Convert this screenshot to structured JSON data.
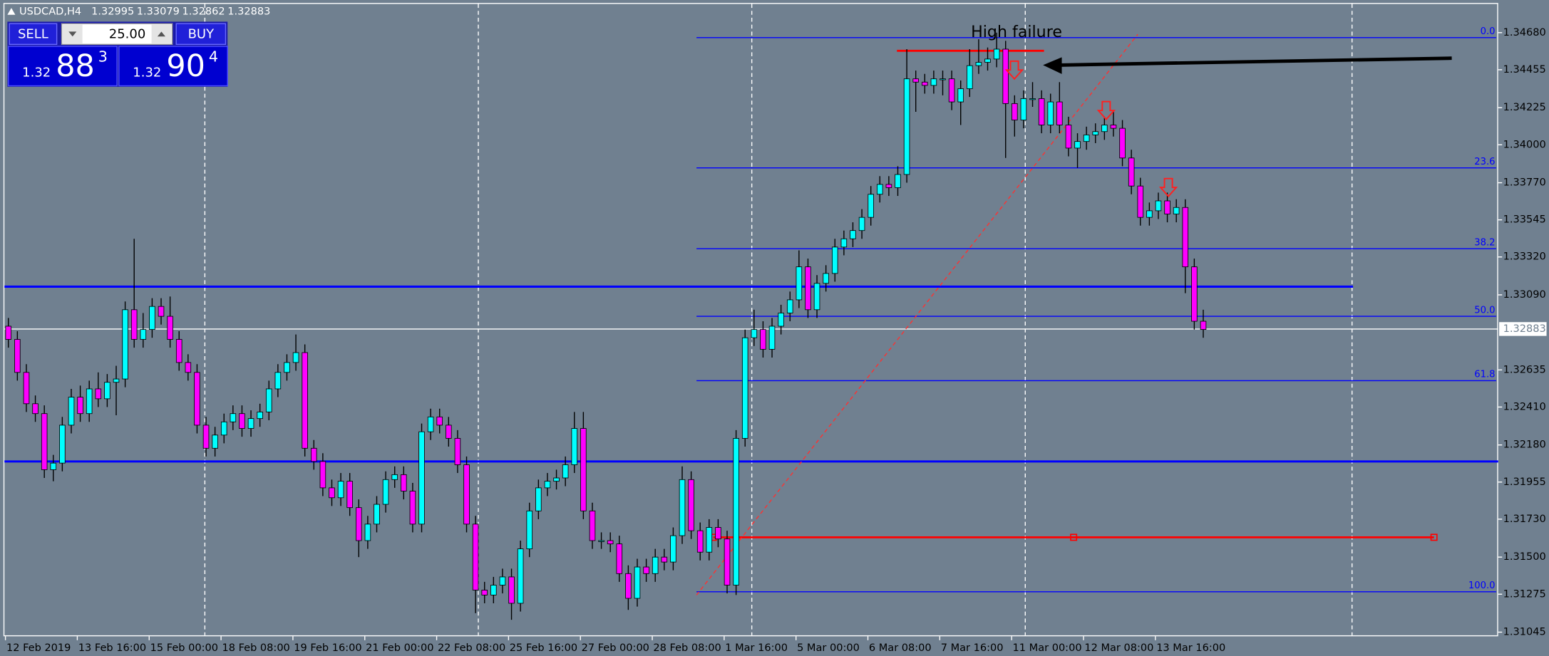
{
  "header": {
    "symbol": "USDCAD,H4",
    "ohlc": [
      "1.32995",
      "1.33079",
      "1.32862",
      "1.32883"
    ]
  },
  "trade_panel": {
    "sell": "SELL",
    "lot": "25.00",
    "buy": "BUY",
    "bid": [
      "1.32",
      "88",
      "3"
    ],
    "ask": [
      "1.32",
      "90",
      "4"
    ]
  },
  "chart_data": {
    "type": "candlestick",
    "annotation": "High failure",
    "bull_color": "#00ffff",
    "bear_color": "#ff00ff",
    "wick_color": "#000000",
    "categories": [
      "12 Feb 2019",
      null,
      null,
      null,
      null,
      null,
      null,
      null,
      "13 Feb 16:00",
      null,
      null,
      null,
      null,
      null,
      null,
      null,
      "15 Feb 00:00",
      null,
      null,
      null,
      null,
      null,
      null,
      null,
      "18 Feb 08:00",
      null,
      null,
      null,
      null,
      null,
      null,
      null,
      "19 Feb 16:00",
      null,
      null,
      null,
      null,
      null,
      null,
      null,
      "21 Feb 00:00",
      null,
      null,
      null,
      null,
      null,
      null,
      null,
      "22 Feb 08:00",
      null,
      null,
      null,
      null,
      null,
      null,
      null,
      "25 Feb 16:00",
      null,
      null,
      null,
      null,
      null,
      null,
      null,
      "27 Feb 00:00",
      null,
      null,
      null,
      null,
      null,
      null,
      null,
      "28 Feb 08:00",
      null,
      null,
      null,
      null,
      null,
      null,
      null,
      "1 Mar 16:00",
      null,
      null,
      null,
      null,
      null,
      null,
      null,
      "5 Mar 00:00",
      null,
      null,
      null,
      null,
      null,
      null,
      null,
      "6 Mar 08:00",
      null,
      null,
      null,
      null,
      null,
      null,
      null,
      "7 Mar 16:00",
      null,
      null,
      null,
      null,
      null,
      null,
      null,
      "11 Mar 00:00",
      null,
      null,
      null,
      null,
      null,
      null,
      null,
      "12 Mar 08:00",
      null,
      null,
      null,
      null,
      null,
      null,
      null,
      "13 Mar 16:00",
      null,
      null,
      null,
      null,
      null
    ],
    "open": [
      1.329,
      1.3282,
      1.3262,
      1.3243,
      1.3237,
      1.3203,
      1.3207,
      1.323,
      1.3247,
      1.3237,
      1.3252,
      1.3246,
      1.3256,
      1.3258,
      1.33,
      1.3282,
      1.3288,
      1.3302,
      1.3296,
      1.3282,
      1.3268,
      1.3262,
      1.323,
      1.3216,
      1.3224,
      1.3232,
      1.3237,
      1.3228,
      1.3234,
      1.3238,
      1.3252,
      1.3262,
      1.3268,
      1.3274,
      1.3216,
      1.3208,
      1.3192,
      1.3186,
      1.3196,
      1.318,
      1.316,
      1.317,
      1.3182,
      1.3197,
      1.32,
      1.319,
      1.317,
      1.3226,
      1.3235,
      1.323,
      1.3222,
      1.3206,
      1.317,
      1.313,
      1.3127,
      1.3133,
      1.3138,
      1.3122,
      1.3155,
      1.3178,
      1.3192,
      1.3196,
      1.3198,
      1.3206,
      1.3228,
      1.3178,
      1.316,
      1.316,
      1.3158,
      1.314,
      1.3125,
      1.3144,
      1.314,
      1.315,
      1.3147,
      1.3163,
      1.3197,
      1.3166,
      1.3153,
      1.3168,
      1.3161,
      1.3133,
      1.3222,
      1.3283,
      1.3288,
      1.3276,
      1.329,
      1.3298,
      1.3306,
      1.3326,
      1.33,
      1.3316,
      1.3322,
      1.3338,
      1.3343,
      1.3348,
      1.3356,
      1.337,
      1.3376,
      1.3374,
      1.3382,
      1.344,
      1.3438,
      1.3436,
      1.344,
      1.344,
      1.3426,
      1.3434,
      1.3448,
      1.345,
      1.3452,
      1.3458,
      1.3425,
      1.3415,
      1.3428,
      1.3428,
      1.3412,
      1.3426,
      1.3412,
      1.3398,
      1.3402,
      1.3406,
      1.3408,
      1.3412,
      1.341,
      1.3392,
      1.3375,
      1.3356,
      1.336,
      1.3366,
      1.3358,
      1.3362,
      1.3326,
      1.3293
    ],
    "high": [
      1.3295,
      1.3287,
      1.3267,
      1.3248,
      1.3242,
      1.3212,
      1.3235,
      1.3252,
      1.3254,
      1.3257,
      1.3262,
      1.3261,
      1.3266,
      1.3305,
      1.3343,
      1.3298,
      1.3307,
      1.3307,
      1.3308,
      1.3287,
      1.3273,
      1.3267,
      1.3235,
      1.3229,
      1.3237,
      1.3242,
      1.3242,
      1.3239,
      1.3243,
      1.3257,
      1.3267,
      1.3273,
      1.3285,
      1.3279,
      1.3221,
      1.3213,
      1.3197,
      1.3201,
      1.3201,
      1.3185,
      1.3175,
      1.3187,
      1.3202,
      1.3205,
      1.3205,
      1.3195,
      1.3231,
      1.324,
      1.324,
      1.3235,
      1.3227,
      1.3211,
      1.3175,
      1.3135,
      1.3138,
      1.3143,
      1.3143,
      1.316,
      1.3183,
      1.3197,
      1.3201,
      1.3203,
      1.3211,
      1.3238,
      1.3238,
      1.3183,
      1.3165,
      1.3165,
      1.3163,
      1.3145,
      1.3149,
      1.3149,
      1.3155,
      1.3155,
      1.3168,
      1.3205,
      1.3202,
      1.3171,
      1.3173,
      1.3173,
      1.3166,
      1.3227,
      1.3288,
      1.33,
      1.3293,
      1.3295,
      1.3303,
      1.3311,
      1.3336,
      1.3331,
      1.3321,
      1.3327,
      1.3343,
      1.3348,
      1.3353,
      1.3361,
      1.3375,
      1.3381,
      1.3381,
      1.3387,
      1.3458,
      1.3445,
      1.3443,
      1.3445,
      1.3445,
      1.3445,
      1.3439,
      1.3458,
      1.3464,
      1.3459,
      1.3468,
      1.3463,
      1.343,
      1.3433,
      1.3438,
      1.3433,
      1.3431,
      1.3438,
      1.3417,
      1.3407,
      1.3411,
      1.3413,
      1.3417,
      1.342,
      1.3415,
      1.3397,
      1.338,
      1.3365,
      1.3371,
      1.3371,
      1.3367,
      1.3367,
      1.3331,
      1.33
    ],
    "low": [
      1.3277,
      1.3257,
      1.3238,
      1.3232,
      1.3198,
      1.3196,
      1.3202,
      1.3225,
      1.3232,
      1.3232,
      1.3241,
      1.3241,
      1.3236,
      1.3253,
      1.3277,
      1.3277,
      1.3283,
      1.3291,
      1.3277,
      1.3263,
      1.3257,
      1.3225,
      1.3211,
      1.3211,
      1.3219,
      1.3227,
      1.3223,
      1.3223,
      1.3229,
      1.3233,
      1.3247,
      1.3257,
      1.3263,
      1.3211,
      1.3203,
      1.3187,
      1.3181,
      1.3181,
      1.3175,
      1.315,
      1.3155,
      1.3165,
      1.3177,
      1.3192,
      1.3185,
      1.3165,
      1.3165,
      1.3221,
      1.3225,
      1.3217,
      1.3201,
      1.3165,
      1.3116,
      1.3122,
      1.3122,
      1.3128,
      1.3112,
      1.3117,
      1.315,
      1.3173,
      1.3187,
      1.3191,
      1.3193,
      1.3201,
      1.3173,
      1.3155,
      1.3155,
      1.3153,
      1.3135,
      1.3118,
      1.312,
      1.3135,
      1.3135,
      1.3142,
      1.3142,
      1.3158,
      1.3161,
      1.3148,
      1.3148,
      1.3156,
      1.3128,
      1.3127,
      1.3217,
      1.3278,
      1.3271,
      1.3271,
      1.3285,
      1.3293,
      1.3301,
      1.3295,
      1.3295,
      1.3311,
      1.3317,
      1.3333,
      1.3338,
      1.3343,
      1.3351,
      1.3365,
      1.3369,
      1.3369,
      1.3377,
      1.342,
      1.3431,
      1.3431,
      1.343,
      1.3421,
      1.3412,
      1.3429,
      1.3443,
      1.3445,
      1.3447,
      1.3392,
      1.3405,
      1.341,
      1.3423,
      1.3407,
      1.3407,
      1.3407,
      1.3393,
      1.3386,
      1.3397,
      1.3401,
      1.3403,
      1.3405,
      1.3387,
      1.337,
      1.3351,
      1.3351,
      1.3355,
      1.3353,
      1.3353,
      1.331,
      1.3288,
      1.3283
    ],
    "close": [
      1.3282,
      1.3262,
      1.3243,
      1.3237,
      1.3203,
      1.3207,
      1.323,
      1.3247,
      1.3237,
      1.3252,
      1.3246,
      1.3256,
      1.3258,
      1.33,
      1.3282,
      1.3288,
      1.3302,
      1.3296,
      1.3282,
      1.3268,
      1.3262,
      1.323,
      1.3216,
      1.3224,
      1.3232,
      1.3237,
      1.3228,
      1.3234,
      1.3238,
      1.3252,
      1.3262,
      1.3268,
      1.3274,
      1.3216,
      1.3208,
      1.3192,
      1.3186,
      1.3196,
      1.318,
      1.316,
      1.317,
      1.3182,
      1.3197,
      1.32,
      1.319,
      1.317,
      1.3226,
      1.3235,
      1.323,
      1.3222,
      1.3206,
      1.317,
      1.313,
      1.3127,
      1.3133,
      1.3138,
      1.3122,
      1.3155,
      1.3178,
      1.3192,
      1.3196,
      1.3198,
      1.3206,
      1.3228,
      1.3178,
      1.316,
      1.316,
      1.3158,
      1.314,
      1.3125,
      1.3144,
      1.314,
      1.315,
      1.3147,
      1.3163,
      1.3197,
      1.3166,
      1.3153,
      1.3168,
      1.3161,
      1.3133,
      1.3222,
      1.3283,
      1.3288,
      1.3276,
      1.329,
      1.3298,
      1.3306,
      1.3326,
      1.33,
      1.3316,
      1.3322,
      1.3338,
      1.3343,
      1.3348,
      1.3356,
      1.337,
      1.3376,
      1.3374,
      1.3382,
      1.344,
      1.3438,
      1.3436,
      1.344,
      1.344,
      1.3426,
      1.3434,
      1.3448,
      1.345,
      1.3452,
      1.3458,
      1.3425,
      1.3415,
      1.3428,
      1.3428,
      1.3412,
      1.3426,
      1.3412,
      1.3398,
      1.3402,
      1.3406,
      1.3408,
      1.3412,
      1.341,
      1.3392,
      1.3375,
      1.3356,
      1.336,
      1.3366,
      1.3358,
      1.3362,
      1.3326,
      1.3293,
      1.3288
    ],
    "ylim": [
      1.3102,
      1.3486
    ],
    "yticks": [
      {
        "value": 1.3468,
        "label": "1.34680"
      },
      {
        "value": 1.34455,
        "label": "1.34455"
      },
      {
        "value": 1.34225,
        "label": "1.34225"
      },
      {
        "value": 1.34,
        "label": "1.34000"
      },
      {
        "value": 1.3377,
        "label": "1.33770"
      },
      {
        "value": 1.33545,
        "label": "1.33545"
      },
      {
        "value": 1.3332,
        "label": "1.33320"
      },
      {
        "value": 1.3309,
        "label": "1.33090"
      },
      {
        "value": 1.32635,
        "label": "1.32635"
      },
      {
        "value": 1.3241,
        "label": "1.32410"
      },
      {
        "value": 1.3218,
        "label": "1.32180"
      },
      {
        "value": 1.31955,
        "label": "1.31955"
      },
      {
        "value": 1.3173,
        "label": "1.31730"
      },
      {
        "value": 1.315,
        "label": "1.31500"
      },
      {
        "value": 1.31275,
        "label": "1.31275"
      },
      {
        "value": 1.31045,
        "label": "1.31045"
      }
    ],
    "last_price": {
      "value": 1.32883,
      "label": "1.32883"
    },
    "levels": [
      {
        "price": 1.3314,
        "color": "#0000ff"
      },
      {
        "price": 1.3208,
        "color": "#0000ff"
      },
      {
        "price": 1.3162,
        "color": "#ff0000"
      },
      {
        "price": 1.3457,
        "color": "#ff0000"
      }
    ],
    "trendline": {
      "prices": [
        1.3127,
        1.3467
      ],
      "color": "#ff3030"
    },
    "fib_color": "#0000ff",
    "fib_levels": [
      {
        "value": 0,
        "label": "0.0"
      },
      {
        "value": 23.6,
        "label": "23.6"
      },
      {
        "value": 38.2,
        "label": "38.2"
      },
      {
        "value": 50,
        "label": "50.0"
      },
      {
        "value": 61.8,
        "label": "61.8"
      },
      {
        "value": 100,
        "label": "100.0"
      }
    ],
    "fib_prices": [
      1.3465,
      1.3386,
      1.3337,
      1.3296,
      1.3257,
      1.3129
    ]
  }
}
